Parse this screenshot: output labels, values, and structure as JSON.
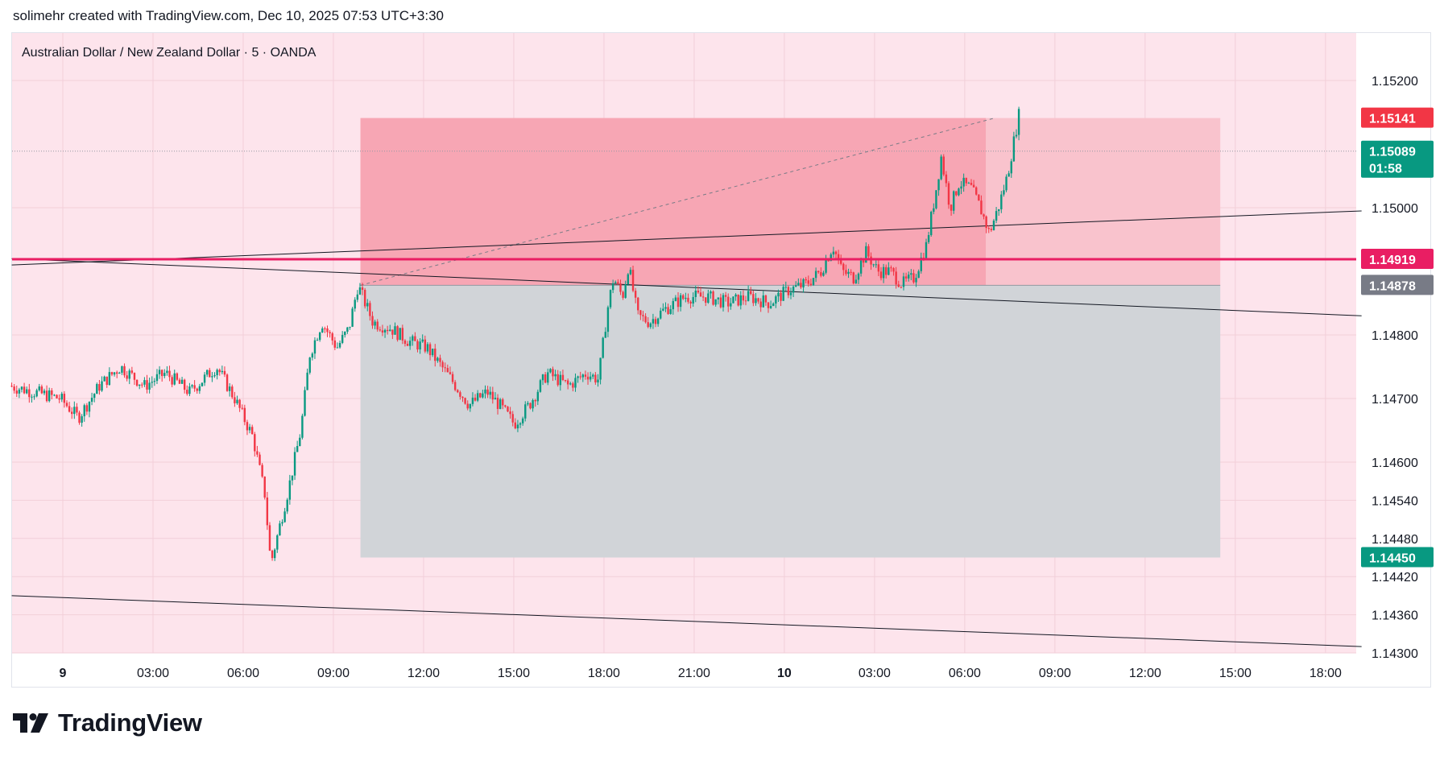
{
  "header": {
    "attribution": "solimehr created with TradingView.com, Dec 10, 2025 07:53 UTC+3:30"
  },
  "brand": {
    "name": "TradingView"
  },
  "colors": {
    "background_zone": "#fde4ec",
    "target_zone": "#f7a6b4",
    "target_zone_extension": "#f9c3cd",
    "stop_zone": "#d1d4d8",
    "up_candle": "#089981",
    "down_candle": "#f23645",
    "line_color": "#131722",
    "resistance_line": "#e91e63",
    "badge_red": "#f23645",
    "badge_green": "#089981",
    "badge_gray": "#787b86"
  },
  "chart_data": {
    "type": "candlestick",
    "legend": "Australian Dollar / New Zealand Dollar · 5 · OANDA",
    "symbol": "AUDNZD",
    "timeframe": "5",
    "exchange": "OANDA",
    "ylim": [
      1.143,
      1.1524
    ],
    "x_ticks": [
      "9",
      "03:00",
      "06:00",
      "09:00",
      "12:00",
      "15:00",
      "18:00",
      "21:00",
      "10",
      "03:00",
      "06:00",
      "09:00",
      "12:00",
      "15:00",
      "18:00"
    ],
    "x_tick_hours": [
      0,
      3,
      6,
      9,
      12,
      15,
      18,
      21,
      24,
      27,
      30,
      33,
      36,
      39,
      42
    ],
    "y_ticks": [
      "1.15200",
      "1.15000",
      "1.14800",
      "1.14700",
      "1.14600",
      "1.14540",
      "1.14480",
      "1.14420",
      "1.14360",
      "1.14300"
    ],
    "y_tick_values": [
      1.152,
      1.15,
      1.148,
      1.147,
      1.146,
      1.1454,
      1.1448,
      1.1442,
      1.1436,
      1.143
    ],
    "price_badges": [
      {
        "label": "1.15141",
        "value": 1.15141,
        "color": "#f23645",
        "sub": ""
      },
      {
        "label": "1.15089",
        "value": 1.15089,
        "color": "#089981",
        "sub": "01:58"
      },
      {
        "label": "1.14919",
        "value": 1.14919,
        "color": "#e91e63",
        "sub": ""
      },
      {
        "label": "1.14878",
        "value": 1.14878,
        "color": "#787b86",
        "sub": ""
      },
      {
        "label": "1.14450",
        "value": 1.1445,
        "color": "#089981",
        "sub": ""
      }
    ],
    "position": {
      "entry": 1.14878,
      "target": 1.15141,
      "stop": 1.1445,
      "start_hour": 9.9,
      "end_hour": 38.5,
      "filled_until_hour": 30.7
    },
    "horizontal_line": 1.14919,
    "last_price": 1.15089,
    "trend_lines": [
      {
        "from": [
          -1.7,
          1.1491
        ],
        "to": [
          43.2,
          1.14995
        ]
      },
      {
        "from": [
          -1.7,
          1.1492
        ],
        "to": [
          43.2,
          1.1483
        ]
      },
      {
        "from": [
          -1.7,
          1.1439
        ],
        "to": [
          43.2,
          1.1431
        ]
      }
    ],
    "candle_hours": [
      -1.7,
      31.8
    ],
    "price_path": [
      [
        -1.7,
        1.1472
      ],
      [
        0.0,
        1.147
      ],
      [
        0.6,
        1.1467
      ],
      [
        1.3,
        1.1472
      ],
      [
        2.0,
        1.1475
      ],
      [
        2.8,
        1.1472
      ],
      [
        3.5,
        1.1474
      ],
      [
        4.3,
        1.1471
      ],
      [
        5.2,
        1.1475
      ],
      [
        5.8,
        1.147
      ],
      [
        6.4,
        1.1464
      ],
      [
        6.8,
        1.1455
      ],
      [
        7.0,
        1.1444
      ],
      [
        7.3,
        1.145
      ],
      [
        7.6,
        1.1456
      ],
      [
        8.0,
        1.1465
      ],
      [
        8.3,
        1.1477
      ],
      [
        8.7,
        1.1482
      ],
      [
        9.2,
        1.1478
      ],
      [
        9.6,
        1.1481
      ],
      [
        9.9,
        1.14878
      ],
      [
        10.4,
        1.1482
      ],
      [
        11.0,
        1.1481
      ],
      [
        11.6,
        1.1479
      ],
      [
        12.2,
        1.1478
      ],
      [
        13.0,
        1.1473
      ],
      [
        13.6,
        1.1469
      ],
      [
        14.2,
        1.1471
      ],
      [
        14.6,
        1.1469
      ],
      [
        15.1,
        1.1466
      ],
      [
        15.6,
        1.1469
      ],
      [
        16.2,
        1.1474
      ],
      [
        16.9,
        1.1472
      ],
      [
        17.5,
        1.1474
      ],
      [
        17.9,
        1.1473
      ],
      [
        18.2,
        1.1484
      ],
      [
        18.4,
        1.1489
      ],
      [
        18.7,
        1.1486
      ],
      [
        18.9,
        1.1491
      ],
      [
        19.2,
        1.1483
      ],
      [
        19.6,
        1.1482
      ],
      [
        20.1,
        1.1484
      ],
      [
        20.8,
        1.1486
      ],
      [
        21.5,
        1.1486
      ],
      [
        22.2,
        1.1485
      ],
      [
        22.9,
        1.1486
      ],
      [
        23.6,
        1.1485
      ],
      [
        24.2,
        1.1487
      ],
      [
        24.8,
        1.1488
      ],
      [
        25.3,
        1.149
      ],
      [
        25.7,
        1.1494
      ],
      [
        26.0,
        1.149
      ],
      [
        26.4,
        1.1489
      ],
      [
        26.8,
        1.1493
      ],
      [
        27.2,
        1.149
      ],
      [
        27.6,
        1.149
      ],
      [
        28.0,
        1.1488
      ],
      [
        28.4,
        1.1489
      ],
      [
        28.8,
        1.1494
      ],
      [
        29.1,
        1.1502
      ],
      [
        29.3,
        1.1508
      ],
      [
        29.6,
        1.15
      ],
      [
        29.9,
        1.1504
      ],
      [
        30.3,
        1.1503
      ],
      [
        30.6,
        1.15
      ],
      [
        30.9,
        1.1496
      ],
      [
        31.2,
        1.15
      ],
      [
        31.5,
        1.1505
      ],
      [
        31.7,
        1.151
      ],
      [
        31.9,
        1.1515
      ],
      [
        32.1,
        1.1512
      ],
      [
        32.3,
        1.1513
      ],
      [
        32.6,
        1.151
      ],
      [
        32.9,
        1.1508
      ],
      [
        33.2,
        1.15089
      ]
    ]
  }
}
